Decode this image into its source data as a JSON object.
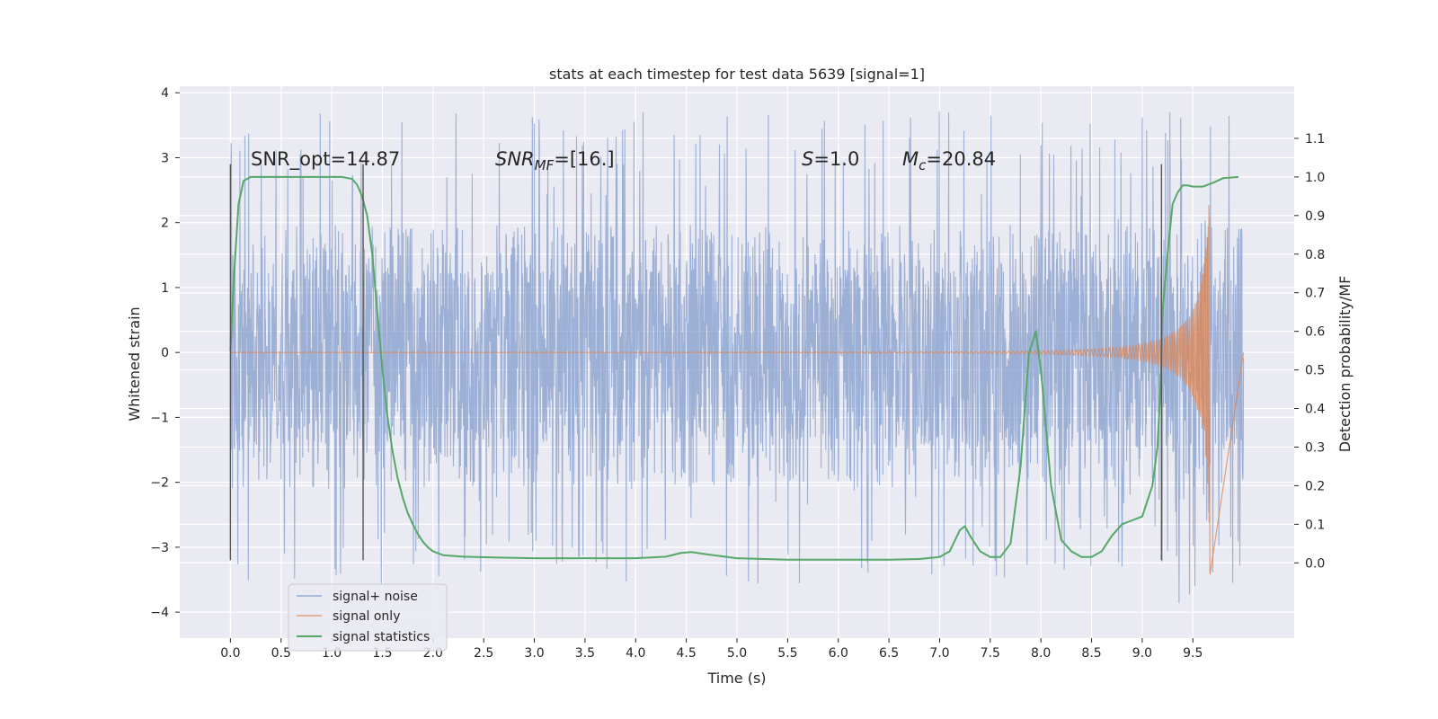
{
  "chart_data": {
    "type": "line",
    "title": "stats at each timestep for test data 5639 [signal=1]",
    "xlabel": "Time (s)",
    "ylabel": "Whitened strain",
    "y2label": "Detection probability/MF",
    "xlim": [
      -0.5,
      10.5
    ],
    "ylim": [
      -4.4,
      4.1
    ],
    "y2lim": [
      -0.195,
      1.235
    ],
    "xticks": [
      "0.0",
      "0.5",
      "1.0",
      "1.5",
      "2.0",
      "2.5",
      "3.0",
      "3.5",
      "4.0",
      "4.5",
      "5.0",
      "5.5",
      "6.0",
      "6.5",
      "7.0",
      "7.5",
      "8.0",
      "8.5",
      "9.0",
      "9.5"
    ],
    "yticks": [
      "4",
      "3",
      "2",
      "1",
      "0",
      "−1",
      "−2",
      "−3",
      "−4"
    ],
    "y2ticks": [
      "1.1",
      "1.0",
      "0.9",
      "0.8",
      "0.7",
      "0.6",
      "0.5",
      "0.4",
      "0.3",
      "0.2",
      "0.1",
      "0.0"
    ],
    "grid": true,
    "legend_position": "lower-left",
    "legend": [
      "signal+ noise",
      "signal only",
      "signal statistics"
    ],
    "annotations": {
      "snr_opt": "SNR_opt=14.87",
      "snr_mf_var": "SNR",
      "snr_mf_sub": "MF",
      "snr_mf_val": "=[16.]",
      "s_var": "S",
      "s_val": "=1.0",
      "mc_var": "M",
      "mc_sub": "c",
      "mc_val": "=20.84"
    },
    "vertical_markers": [
      0.0,
      1.31,
      9.19
    ],
    "marker_range": [
      -3.2,
      2.9
    ],
    "series": [
      {
        "name": "signal+ noise",
        "axis": "left",
        "kind": "noise",
        "x_range": [
          0.0,
          10.0
        ],
        "typical_amplitude": [
          -1.4,
          1.3
        ],
        "peak_amplitude": [
          -3.6,
          3.7
        ],
        "color": "#7b96c9"
      },
      {
        "name": "signal only",
        "axis": "left",
        "kind": "chirp",
        "x_range": [
          0.0,
          9.67
        ],
        "max_amplitude": 3.6,
        "color": "#dd8452"
      },
      {
        "name": "signal statistics",
        "axis": "right",
        "color": "#55a868",
        "x": [
          0.0,
          0.03,
          0.08,
          0.13,
          0.2,
          0.3,
          0.5,
          0.8,
          1.0,
          1.1,
          1.2,
          1.25,
          1.3,
          1.35,
          1.4,
          1.45,
          1.5,
          1.55,
          1.6,
          1.65,
          1.7,
          1.75,
          1.8,
          1.85,
          1.9,
          1.95,
          2.0,
          2.1,
          2.3,
          2.6,
          3.0,
          3.5,
          4.0,
          4.3,
          4.45,
          4.55,
          4.7,
          5.0,
          5.5,
          6.0,
          6.5,
          6.8,
          7.0,
          7.1,
          7.2,
          7.25,
          7.3,
          7.4,
          7.5,
          7.6,
          7.7,
          7.8,
          7.88,
          7.95,
          8.0,
          8.1,
          8.2,
          8.3,
          8.4,
          8.5,
          8.6,
          8.7,
          8.8,
          8.9,
          9.0,
          9.1,
          9.15,
          9.18,
          9.2,
          9.25,
          9.3,
          9.35,
          9.4,
          9.45,
          9.5,
          9.6,
          9.7,
          9.8,
          9.95
        ],
        "y": [
          0.55,
          0.72,
          0.93,
          0.99,
          1.0,
          1.0,
          1.0,
          1.0,
          1.0,
          1.0,
          0.995,
          0.98,
          0.95,
          0.9,
          0.8,
          0.65,
          0.5,
          0.38,
          0.29,
          0.22,
          0.17,
          0.13,
          0.1,
          0.075,
          0.055,
          0.04,
          0.03,
          0.02,
          0.016,
          0.014,
          0.012,
          0.012,
          0.012,
          0.016,
          0.026,
          0.028,
          0.022,
          0.012,
          0.008,
          0.008,
          0.008,
          0.01,
          0.015,
          0.03,
          0.085,
          0.095,
          0.07,
          0.03,
          0.015,
          0.015,
          0.05,
          0.25,
          0.54,
          0.6,
          0.5,
          0.2,
          0.06,
          0.03,
          0.015,
          0.015,
          0.03,
          0.07,
          0.1,
          0.11,
          0.12,
          0.2,
          0.3,
          0.45,
          0.65,
          0.8,
          0.93,
          0.96,
          0.978,
          0.978,
          0.975,
          0.975,
          0.985,
          0.997,
          1.0
        ]
      }
    ]
  }
}
